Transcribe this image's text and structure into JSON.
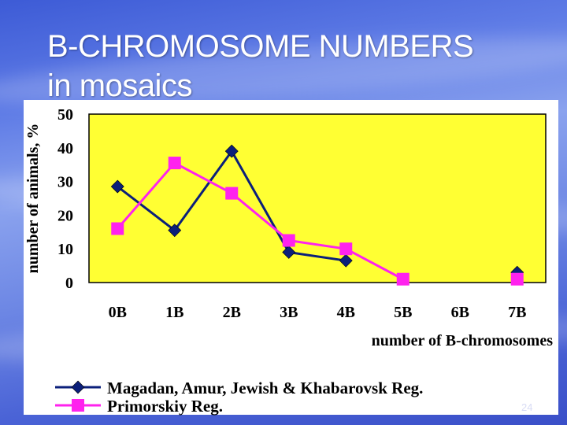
{
  "slide": {
    "title_line1": "B-CHROMOSOME NUMBERS",
    "title_line2": "in mosaics",
    "page_number": "24"
  },
  "colors": {
    "plot_background": "#ffff33",
    "series_1": "#0b1f7a",
    "series_2": "#ff22ee"
  },
  "chart_data": {
    "type": "line",
    "categories": [
      "0B",
      "1B",
      "2B",
      "3B",
      "4B",
      "5B",
      "6B",
      "7B"
    ],
    "xlabel": "number of B-chromosomes",
    "ylabel": "number of animals, %",
    "ylim": [
      0,
      50
    ],
    "yticks": [
      "0",
      "10",
      "20",
      "30",
      "40",
      "50"
    ],
    "grid": false,
    "legend_position": "bottom",
    "series": [
      {
        "name": "Magadan, Amur, Jewish & Khabarovsk Reg.",
        "marker": "diamond",
        "values": [
          28.5,
          15.5,
          39,
          9,
          6.5,
          null,
          null,
          3
        ]
      },
      {
        "name": "Primorskiy Reg.",
        "marker": "square",
        "values": [
          16,
          35.5,
          26.5,
          12.5,
          10,
          1,
          null,
          1
        ]
      }
    ]
  }
}
